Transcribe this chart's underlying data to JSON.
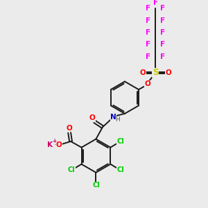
{
  "background_color": "#ebebeb",
  "bond_color": "#1a1a1a",
  "atom_colors": {
    "F": "#ff00ff",
    "Cl": "#00cc00",
    "O": "#ff0000",
    "S": "#cccc00",
    "N": "#0000cc",
    "K": "#cc0066",
    "H": "#555555"
  },
  "figsize": [
    3.0,
    3.0
  ],
  "dpi": 100
}
